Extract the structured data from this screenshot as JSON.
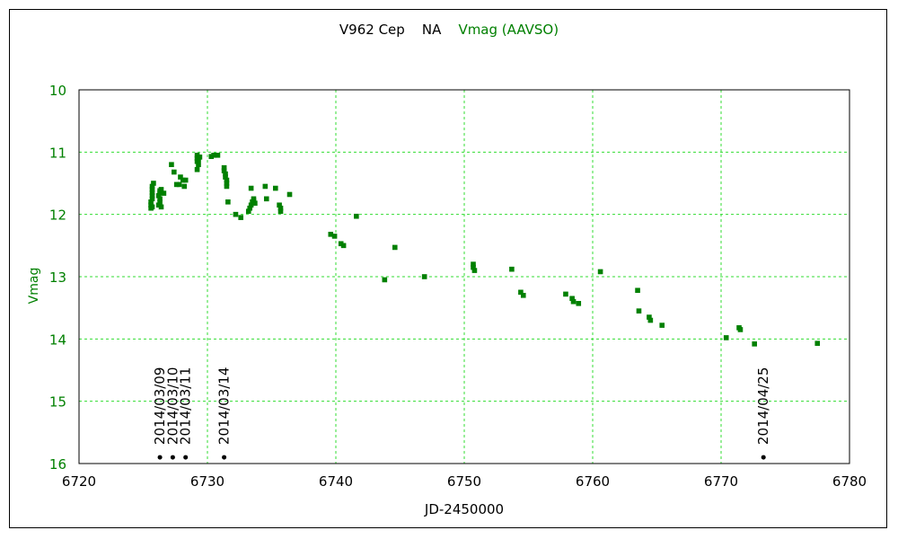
{
  "title": {
    "star": "V962 Cep",
    "type": "NA",
    "band": "Vmag (AAVSO)"
  },
  "colors": {
    "data": "#008000",
    "grid": "#33dd33",
    "axis": "#000000",
    "ytick": "#008000",
    "xtick": "#000000"
  },
  "chart_data": {
    "type": "scatter",
    "title": "V962 Cep    NA    Vmag (AAVSO)",
    "xlabel": "JD-2450000",
    "ylabel": "Vmag",
    "xlim": [
      6720,
      6780
    ],
    "ylim": [
      10,
      16
    ],
    "y_inverted": true,
    "xticks": [
      6720,
      6730,
      6740,
      6750,
      6760,
      6770,
      6780
    ],
    "yticks": [
      10,
      11,
      12,
      13,
      14,
      15,
      16
    ],
    "grid": true,
    "series": [
      {
        "name": "Vmag (AAVSO)",
        "points": [
          [
            6725.6,
            11.9
          ],
          [
            6725.6,
            11.85
          ],
          [
            6725.6,
            11.8
          ],
          [
            6725.7,
            11.75
          ],
          [
            6725.7,
            11.7
          ],
          [
            6725.7,
            11.65
          ],
          [
            6725.7,
            11.6
          ],
          [
            6725.7,
            11.55
          ],
          [
            6725.8,
            11.5
          ],
          [
            6725.7,
            11.88
          ],
          [
            6726.2,
            11.85
          ],
          [
            6726.3,
            11.8
          ],
          [
            6726.3,
            11.75
          ],
          [
            6726.2,
            11.7
          ],
          [
            6726.3,
            11.65
          ],
          [
            6726.4,
            11.6
          ],
          [
            6726.4,
            11.88
          ],
          [
            6726.3,
            11.62
          ],
          [
            6726.6,
            11.66
          ],
          [
            6727.2,
            11.2
          ],
          [
            6727.4,
            11.32
          ],
          [
            6727.6,
            11.52
          ],
          [
            6727.8,
            11.52
          ],
          [
            6727.9,
            11.4
          ],
          [
            6728.1,
            11.45
          ],
          [
            6728.2,
            11.55
          ],
          [
            6728.3,
            11.45
          ],
          [
            6729.2,
            11.05
          ],
          [
            6729.2,
            11.1
          ],
          [
            6729.2,
            11.15
          ],
          [
            6729.3,
            11.12
          ],
          [
            6729.2,
            11.28
          ],
          [
            6729.3,
            11.2
          ],
          [
            6729.4,
            11.08
          ],
          [
            6730.3,
            11.07
          ],
          [
            6730.5,
            11.05
          ],
          [
            6730.8,
            11.05
          ],
          [
            6731.3,
            11.25
          ],
          [
            6731.3,
            11.3
          ],
          [
            6731.4,
            11.35
          ],
          [
            6731.4,
            11.4
          ],
          [
            6731.5,
            11.45
          ],
          [
            6731.5,
            11.5
          ],
          [
            6731.5,
            11.55
          ],
          [
            6731.6,
            11.8
          ],
          [
            6732.2,
            12.0
          ],
          [
            6732.6,
            12.05
          ],
          [
            6733.2,
            11.95
          ],
          [
            6733.3,
            11.9
          ],
          [
            6733.4,
            11.85
          ],
          [
            6733.5,
            11.8
          ],
          [
            6733.6,
            11.75
          ],
          [
            6733.4,
            11.58
          ],
          [
            6733.6,
            11.78
          ],
          [
            6733.7,
            11.82
          ],
          [
            6734.5,
            11.55
          ],
          [
            6734.6,
            11.75
          ],
          [
            6735.3,
            11.58
          ],
          [
            6735.6,
            11.85
          ],
          [
            6735.7,
            11.9
          ],
          [
            6735.7,
            11.95
          ],
          [
            6736.4,
            11.68
          ],
          [
            6739.6,
            12.32
          ],
          [
            6739.9,
            12.35
          ],
          [
            6740.4,
            12.47
          ],
          [
            6740.6,
            12.5
          ],
          [
            6741.6,
            12.03
          ],
          [
            6743.8,
            13.05
          ],
          [
            6744.6,
            12.53
          ],
          [
            6746.9,
            13.0
          ],
          [
            6750.7,
            12.8
          ],
          [
            6750.7,
            12.85
          ],
          [
            6750.8,
            12.9
          ],
          [
            6753.7,
            12.88
          ],
          [
            6754.4,
            13.25
          ],
          [
            6754.6,
            13.3
          ],
          [
            6757.9,
            13.28
          ],
          [
            6758.4,
            13.35
          ],
          [
            6758.5,
            13.4
          ],
          [
            6758.9,
            13.43
          ],
          [
            6760.6,
            12.92
          ],
          [
            6763.5,
            13.22
          ],
          [
            6763.6,
            13.55
          ],
          [
            6764.4,
            13.65
          ],
          [
            6764.5,
            13.7
          ],
          [
            6765.4,
            13.78
          ],
          [
            6770.4,
            13.98
          ],
          [
            6771.4,
            13.82
          ],
          [
            6771.5,
            13.85
          ],
          [
            6772.6,
            14.08
          ],
          [
            6777.5,
            14.07
          ]
        ]
      }
    ],
    "date_markers": [
      {
        "label": "2014/03/09",
        "x": 6726.3,
        "y": 15.9
      },
      {
        "label": "2014/03/10",
        "x": 6727.3,
        "y": 15.9
      },
      {
        "label": "2014/03/11",
        "x": 6728.3,
        "y": 15.9
      },
      {
        "label": "2014/03/14",
        "x": 6731.3,
        "y": 15.9
      },
      {
        "label": "2014/04/25",
        "x": 6773.3,
        "y": 15.9
      }
    ]
  }
}
